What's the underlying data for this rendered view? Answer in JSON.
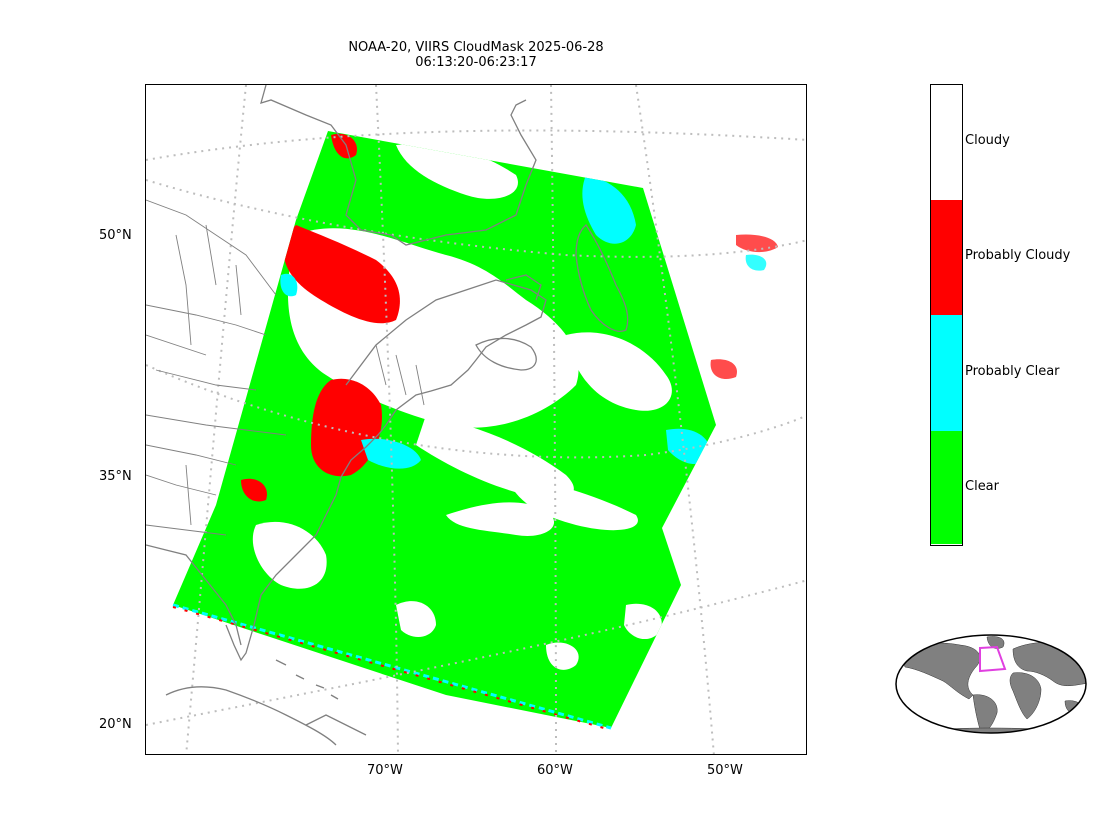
{
  "title": {
    "line1": "NOAA-20, VIIRS CloudMask 2025-06-28",
    "line2": "06:13:20-06:23:17"
  },
  "map": {
    "lat_labels": [
      "50°N",
      "35°N",
      "20°N"
    ],
    "lon_labels": [
      "70°W",
      "60°W",
      "50°W"
    ],
    "coastline_color": "#808080",
    "gridline_color": "#bdbdbd"
  },
  "colorbar": {
    "categories": [
      {
        "label": "Cloudy",
        "color": "#ffffff"
      },
      {
        "label": "Probably Cloudy",
        "color": "#ff0000"
      },
      {
        "label": "Probably Clear",
        "color": "#00ffff"
      },
      {
        "label": "Clear",
        "color": "#00ff00"
      }
    ]
  },
  "inset": {
    "land_color": "#808080",
    "ocean_color": "#ffffff",
    "highlight_color": "#e040e0"
  }
}
